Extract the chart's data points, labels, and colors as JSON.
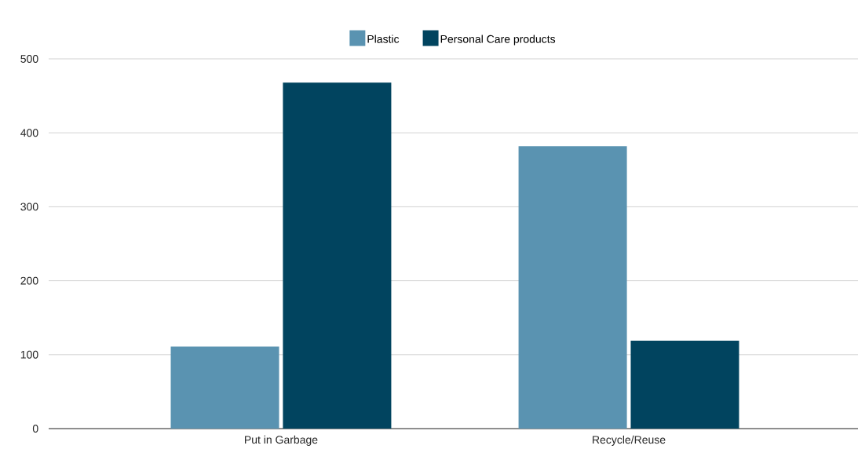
{
  "chart_data": {
    "type": "bar",
    "categories": [
      "Put in Garbage",
      "Recycle/Reuse"
    ],
    "series": [
      {
        "name": "Plastic",
        "color": "#5a93b1",
        "values": [
          111,
          382
        ]
      },
      {
        "name": "Personal Care products",
        "color": "#01445f",
        "values": [
          468,
          119
        ]
      }
    ],
    "ylim": [
      0,
      500
    ],
    "yticks": [
      0,
      100,
      200,
      300,
      400,
      500
    ],
    "grid": "y",
    "legend": "top"
  }
}
